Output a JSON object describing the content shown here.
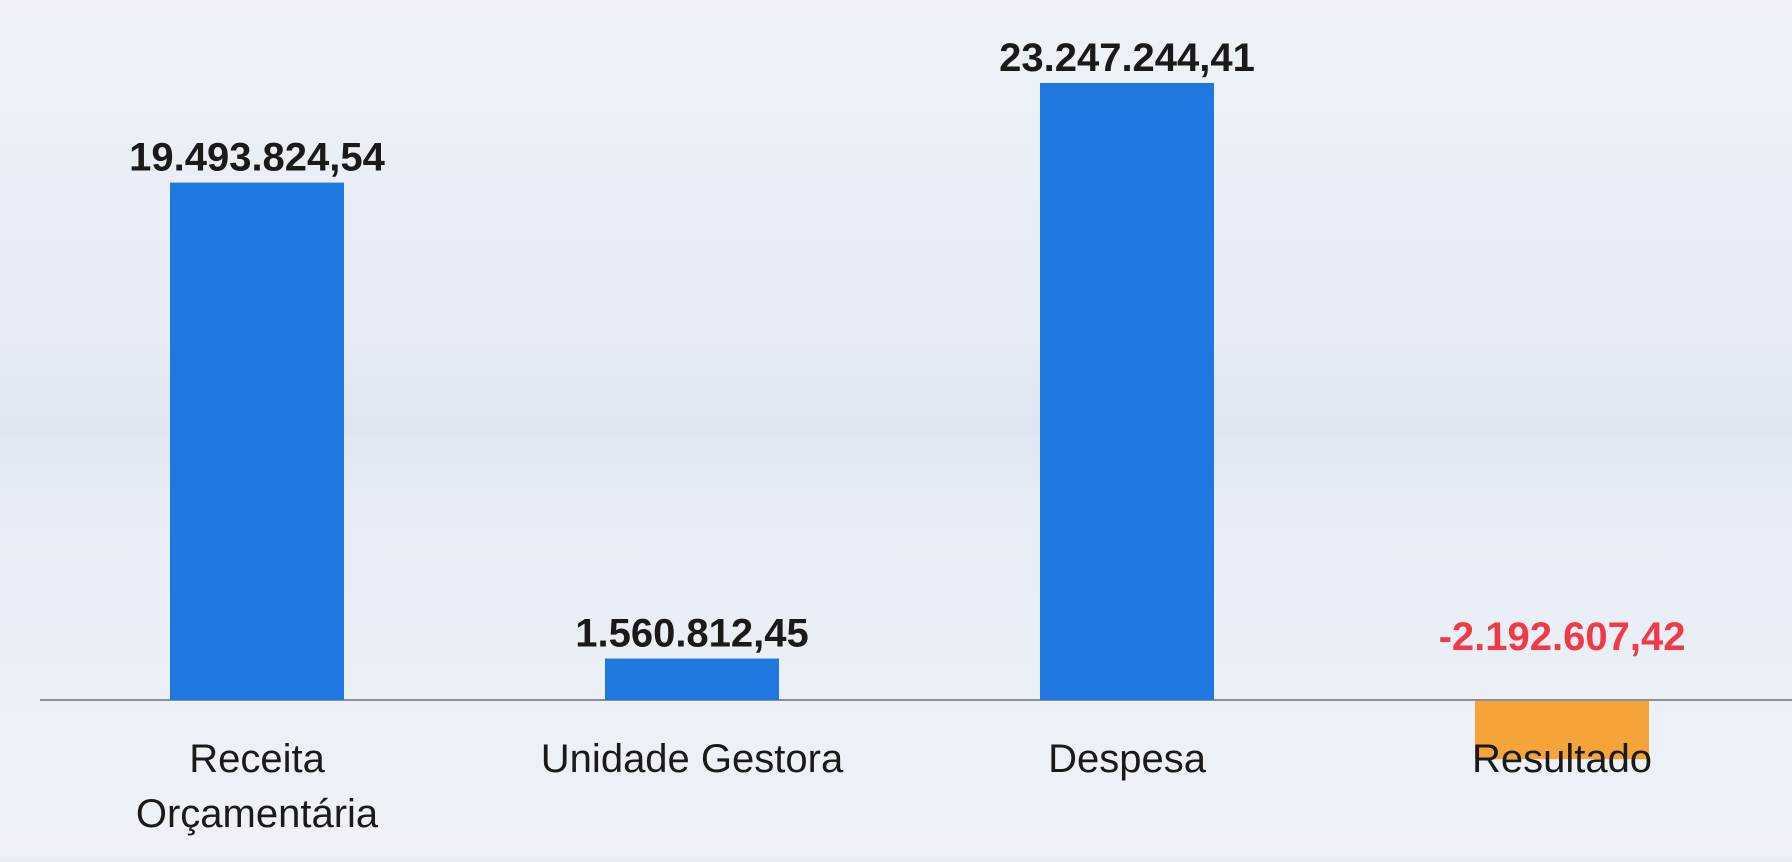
{
  "chart_data": {
    "type": "bar",
    "categories": [
      [
        "Receita",
        "Orçamentária"
      ],
      [
        "Unidade Gestora"
      ],
      [
        "Despesa"
      ],
      [
        "Resultado"
      ]
    ],
    "values": [
      19493824.54,
      1560812.45,
      23247244.41,
      -2192607.42
    ],
    "value_labels": [
      "19.493.824,54",
      "1.560.812,45",
      "23.247.244,41",
      "-2.192.607,42"
    ],
    "bar_colors": [
      "#1f77e0",
      "#1f77e0",
      "#1f77e0",
      "#f5a43a"
    ],
    "label_colors": [
      "#1a1a1a",
      "#1a1a1a",
      "#1a1a1a",
      "#f03a47"
    ],
    "title": "",
    "xlabel": "",
    "ylabel": "",
    "grid": false,
    "legend": "none"
  }
}
